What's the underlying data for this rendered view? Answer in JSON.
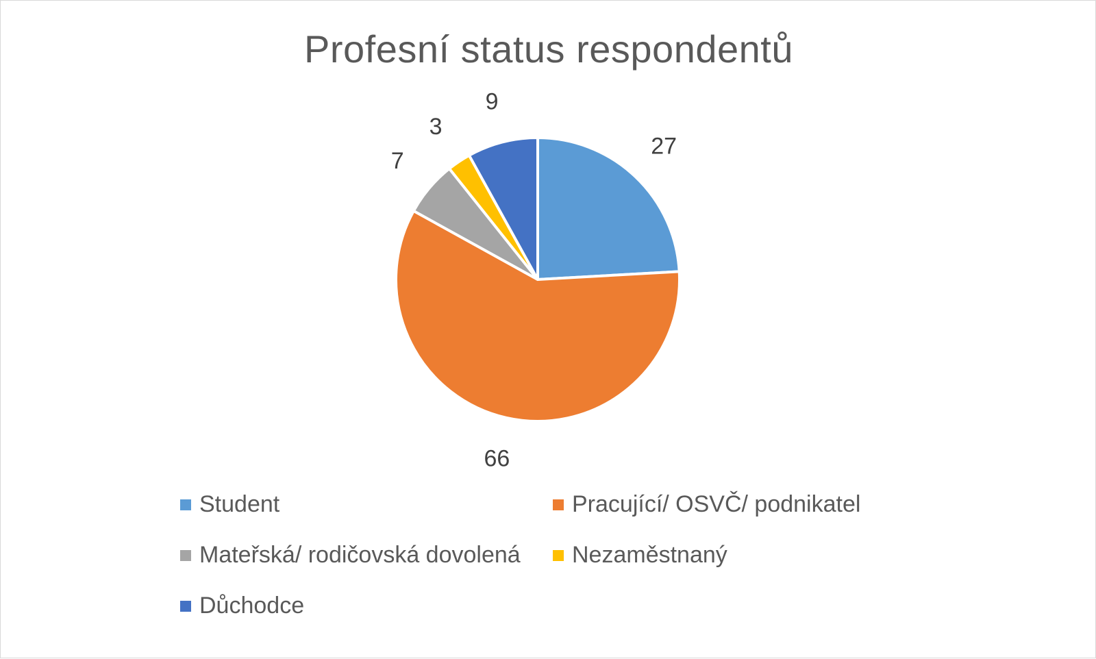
{
  "chart_data": {
    "type": "pie",
    "title": "Profesní status respondentů",
    "categories": [
      "Student",
      "Pracující/ OSVČ/ podnikatel",
      "Mateřská/ rodičovská dovolená",
      "Nezaměstnaný",
      "Důchodce"
    ],
    "values": [
      27,
      66,
      7,
      3,
      9
    ],
    "colors": [
      "#5b9bd5",
      "#ed7d31",
      "#a5a5a5",
      "#ffc000",
      "#4472c4"
    ],
    "data_labels": [
      "27",
      "66",
      "7",
      "3",
      "9"
    ],
    "legend_position": "bottom",
    "slice_order": "clockwise-from-top"
  }
}
